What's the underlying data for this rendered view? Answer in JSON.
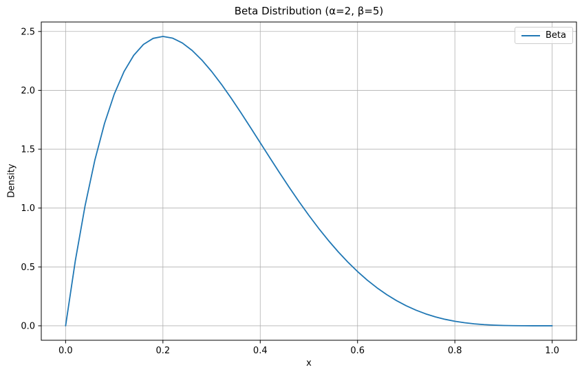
{
  "chart_data": {
    "type": "line",
    "title": "Beta Distribution (α=2, β=5)",
    "xlabel": "x",
    "ylabel": "Density",
    "xlim": [
      -0.05,
      1.05
    ],
    "ylim": [
      -0.1229,
      2.5805
    ],
    "x_ticks": [
      0.0,
      0.2,
      0.4,
      0.6,
      0.8,
      1.0
    ],
    "x_tick_labels": [
      "0.0",
      "0.2",
      "0.4",
      "0.6",
      "0.8",
      "1.0"
    ],
    "y_ticks": [
      0.0,
      0.5,
      1.0,
      1.5,
      2.0,
      2.5
    ],
    "y_tick_labels": [
      "0.0",
      "0.5",
      "1.0",
      "1.5",
      "2.0",
      "2.5"
    ],
    "grid": true,
    "legend": {
      "position": "upper right",
      "entries": [
        "Beta"
      ]
    },
    "series": [
      {
        "name": "Beta",
        "color": "#1f77b4",
        "x": [
          0.0,
          0.02,
          0.04,
          0.06,
          0.08,
          0.1,
          0.12,
          0.14,
          0.16,
          0.18,
          0.2,
          0.22,
          0.24,
          0.26,
          0.28,
          0.3,
          0.32,
          0.34,
          0.36,
          0.38,
          0.4,
          0.42,
          0.44,
          0.46,
          0.48,
          0.5,
          0.52,
          0.54,
          0.56,
          0.58,
          0.6,
          0.62,
          0.64,
          0.66,
          0.68,
          0.7,
          0.72,
          0.74,
          0.76,
          0.78,
          0.8,
          0.82,
          0.84,
          0.86,
          0.88,
          0.9,
          0.92,
          0.94,
          0.96,
          0.98,
          1.0
        ],
        "y": [
          0.0,
          0.5534,
          1.0192,
          1.4053,
          1.7193,
          1.9683,
          2.1589,
          2.2974,
          2.3898,
          2.4415,
          2.4576,
          2.443,
          2.4021,
          2.339,
          2.2574,
          2.1609,
          2.0526,
          1.9354,
          1.8119,
          1.6845,
          1.5552,
          1.4259,
          1.2982,
          1.1734,
          1.0529,
          0.9375,
          0.8281,
          0.7253,
          0.6297,
          0.5414,
          0.4608,
          0.3878,
          0.3225,
          0.2646,
          0.2139,
          0.1701,
          0.1328,
          0.1014,
          0.0756,
          0.0548,
          0.0384,
          0.0258,
          0.0165,
          0.0099,
          0.0055,
          0.0027,
          0.0011,
          0.0004,
          0.0001,
          0.0,
          0.0
        ]
      }
    ],
    "colors": {
      "line": "#1f77b4",
      "grid": "#b0b0b0",
      "spine": "#000000",
      "text": "#000000",
      "legend_edge": "#cccccc",
      "background": "#ffffff"
    }
  }
}
